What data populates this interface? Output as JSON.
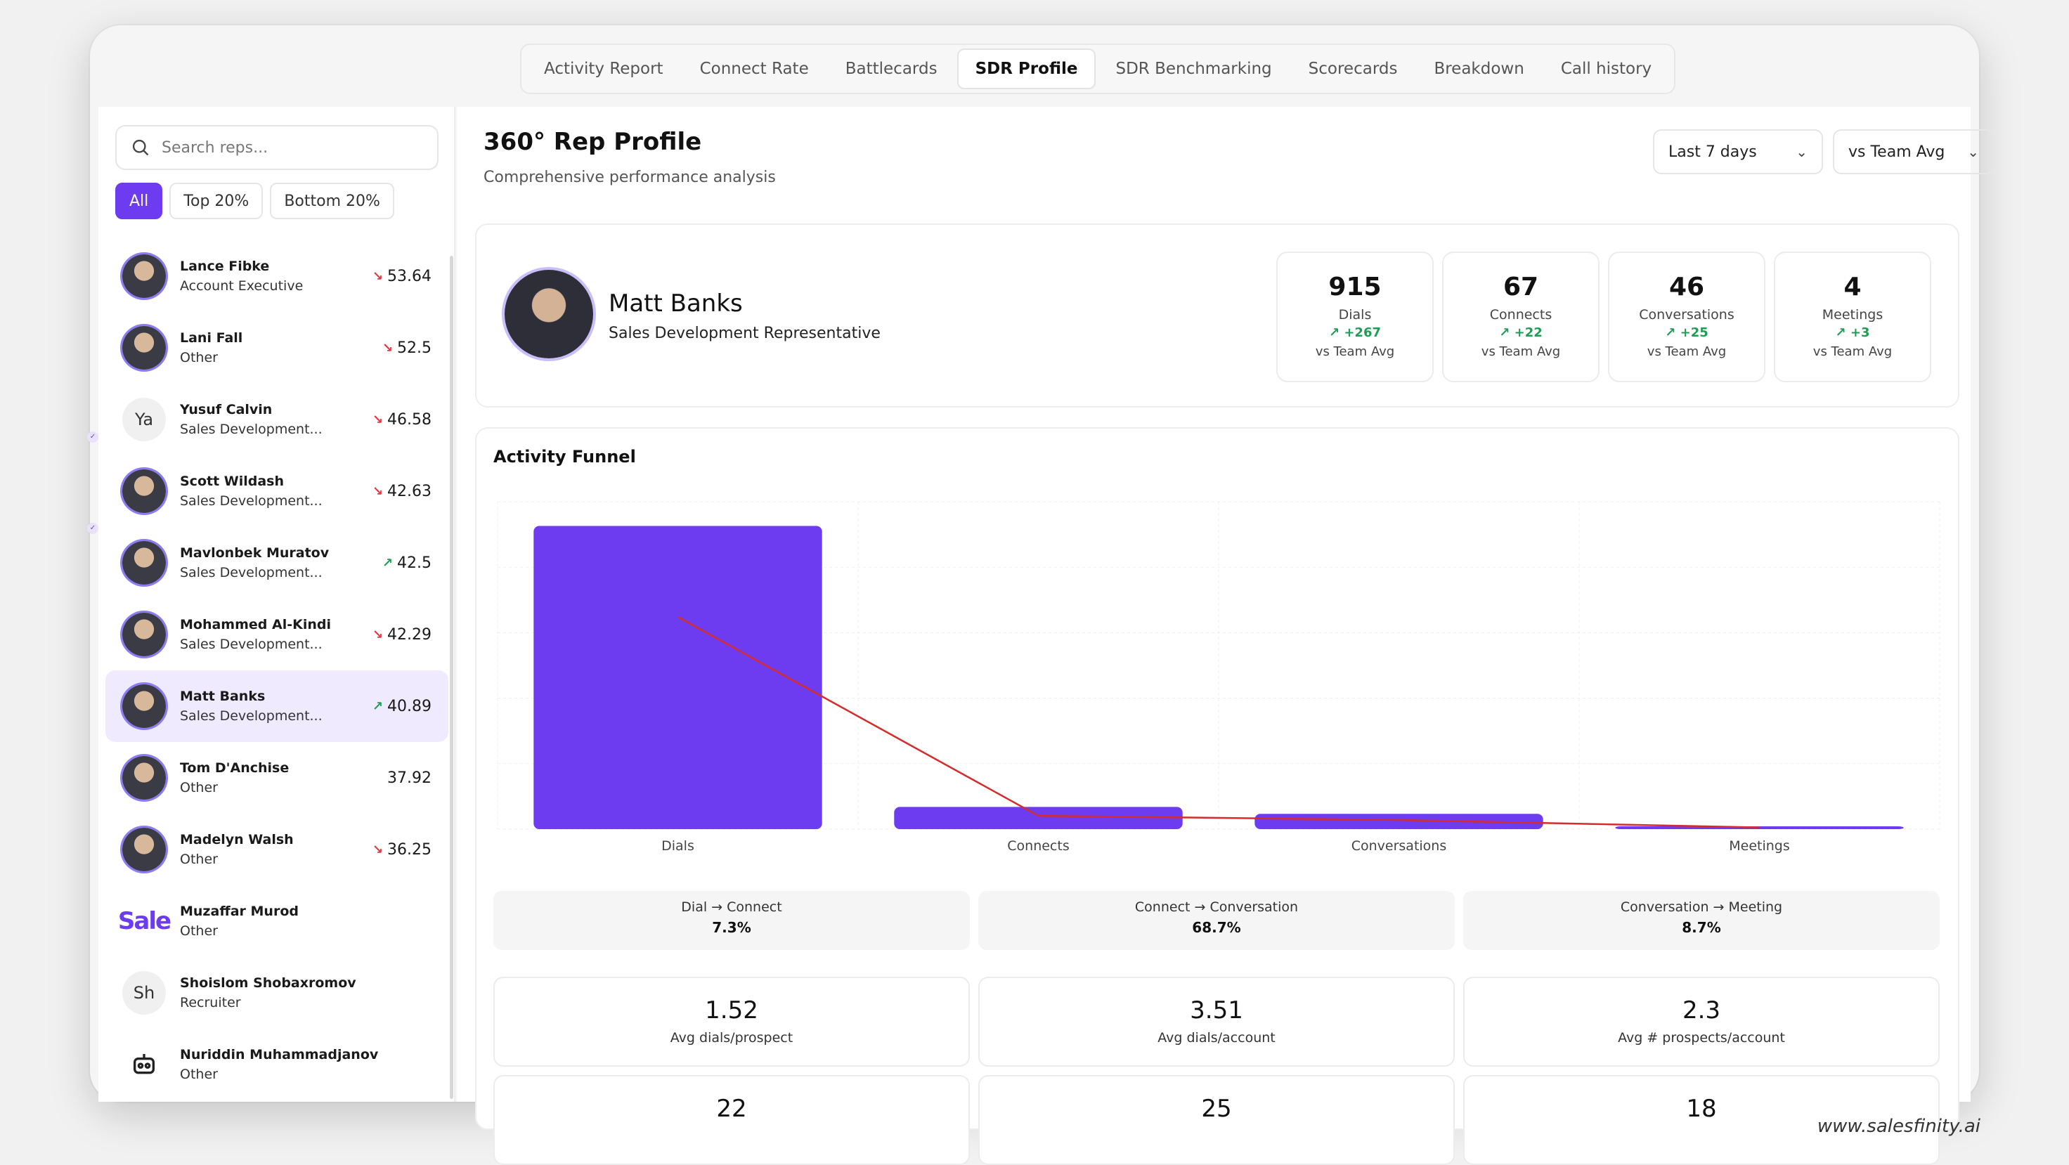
{
  "tabs": [
    {
      "label": "Activity Report",
      "active": false
    },
    {
      "label": "Connect Rate",
      "active": false
    },
    {
      "label": "Battlecards",
      "active": false
    },
    {
      "label": "SDR Profile",
      "active": true
    },
    {
      "label": "SDR Benchmarking",
      "active": false
    },
    {
      "label": "Scorecards",
      "active": false
    },
    {
      "label": "Breakdown",
      "active": false
    },
    {
      "label": "Call history",
      "active": false
    }
  ],
  "sidebar": {
    "search_placeholder": "Search reps...",
    "filters": [
      "All",
      "Top 20%",
      "Bottom 20%"
    ],
    "reps": [
      {
        "name": "Lance Fibke",
        "role": "Account Executive",
        "score": "53.64",
        "trend": "down",
        "avatar": "photo"
      },
      {
        "name": "Lani Fall",
        "role": "Other",
        "score": "52.5",
        "trend": "down",
        "avatar": "photo"
      },
      {
        "name": "Yusuf Calvin",
        "role": "Sales Development...",
        "score": "46.58",
        "trend": "down",
        "avatar": "initials",
        "initials": "Ya"
      },
      {
        "name": "Scott Wildash",
        "role": "Sales Development...",
        "score": "42.63",
        "trend": "down",
        "avatar": "photo"
      },
      {
        "name": "Mavlonbek Muratov",
        "role": "Sales Development...",
        "score": "42.5",
        "trend": "up",
        "avatar": "photo"
      },
      {
        "name": "Mohammed Al-Kindi",
        "role": "Sales Development...",
        "score": "42.29",
        "trend": "down",
        "avatar": "photo"
      },
      {
        "name": "Matt Banks",
        "role": "Sales Development...",
        "score": "40.89",
        "trend": "up",
        "avatar": "photo",
        "selected": true
      },
      {
        "name": "Tom D'Anchise",
        "role": "Other",
        "score": "37.92",
        "trend": "none",
        "avatar": "photo"
      },
      {
        "name": "Madelyn Walsh",
        "role": "Other",
        "score": "36.25",
        "trend": "down",
        "avatar": "photo"
      },
      {
        "name": "Muzaffar Murod",
        "role": "Other",
        "score": "",
        "trend": "none",
        "avatar": "brand",
        "initials": "Sale"
      },
      {
        "name": "Shoislom Shobaxromov",
        "role": "Recruiter",
        "score": "",
        "trend": "none",
        "avatar": "initials",
        "initials": "Sh"
      },
      {
        "name": "Nuriddin Muhammadjanov",
        "role": "Other",
        "score": "",
        "trend": "none",
        "avatar": "robot"
      }
    ]
  },
  "main": {
    "title": "360° Rep Profile",
    "subtitle": "Comprehensive performance analysis",
    "period_select": "Last 7 days",
    "compare_select": "vs Team Avg",
    "profile": {
      "name": "Matt Banks",
      "role": "Sales Development Representative"
    },
    "stats": [
      {
        "value": "915",
        "label": "Dials",
        "delta": "+267",
        "vs": "vs Team Avg"
      },
      {
        "value": "67",
        "label": "Connects",
        "delta": "+22",
        "vs": "vs Team Avg"
      },
      {
        "value": "46",
        "label": "Conversations",
        "delta": "+25",
        "vs": "vs Team Avg"
      },
      {
        "value": "4",
        "label": "Meetings",
        "delta": "+3",
        "vs": "vs Team Avg"
      }
    ],
    "funnel_title": "Activity Funnel",
    "ratios": [
      {
        "label": "Dial → Connect",
        "value": "7.3%"
      },
      {
        "label": "Connect → Conversation",
        "value": "68.7%"
      },
      {
        "label": "Conversation → Meeting",
        "value": "8.7%"
      }
    ],
    "metrics": [
      {
        "value": "1.52",
        "label": "Avg dials/prospect"
      },
      {
        "value": "3.51",
        "label": "Avg dials/account"
      },
      {
        "value": "2.3",
        "label": "Avg # prospects/account"
      },
      {
        "value": "22",
        "label": ""
      },
      {
        "value": "25",
        "label": ""
      },
      {
        "value": "18",
        "label": ""
      }
    ]
  },
  "chart_data": {
    "type": "bar",
    "title": "Activity Funnel",
    "categories": [
      "Dials",
      "Connects",
      "Conversations",
      "Meetings"
    ],
    "values": [
      915,
      67,
      46,
      4
    ],
    "line_overlay": true,
    "colors": {
      "bar": "#6d3bf0",
      "line": "#d62b2b"
    },
    "grid": true,
    "legend": "none"
  },
  "colors": {
    "accent": "#6d3bf0",
    "up": "#1f9d55",
    "down": "#e0393e"
  },
  "watermark": "www.salesfinity.ai"
}
